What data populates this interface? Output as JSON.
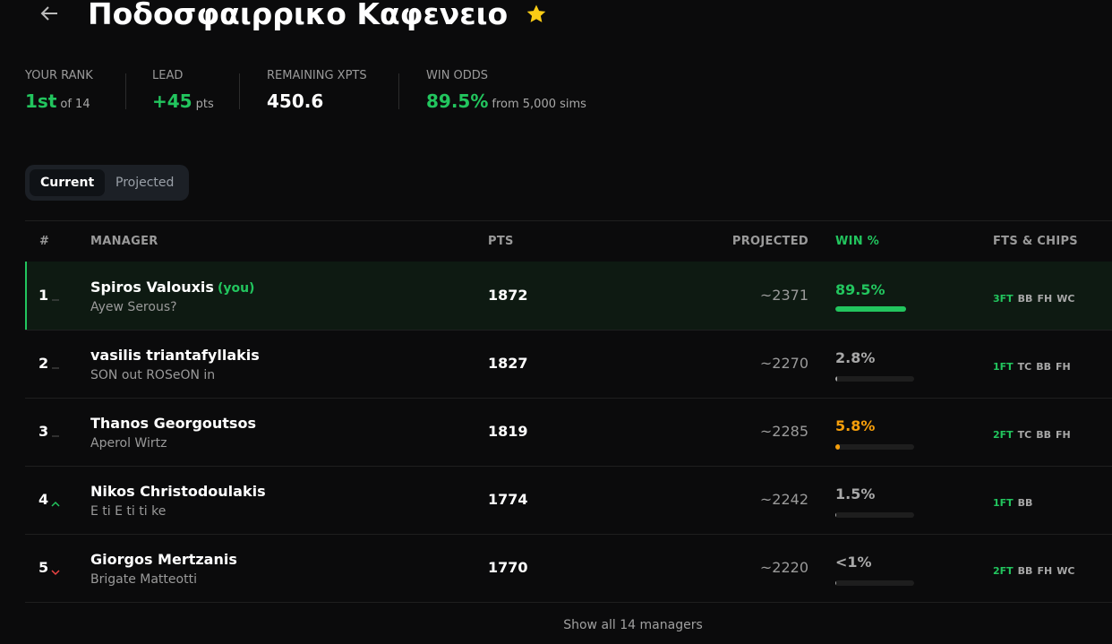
{
  "header": {
    "title": "Ποδοσφαιρρικο Καφενειο"
  },
  "stats": [
    {
      "label": "YOUR RANK",
      "value": "1st",
      "suffix": "of 14",
      "color": "#22c55e"
    },
    {
      "label": "LEAD",
      "value": "+45",
      "suffix": "pts",
      "color": "#22c55e"
    },
    {
      "label": "REMAINING XPTS",
      "value": "450.6",
      "color": "#ffffff"
    },
    {
      "label": "WIN ODDS",
      "value": "89.5%",
      "suffix": "from 5,000 sims",
      "color": "#22c55e"
    }
  ],
  "tabs": [
    "Current",
    "Projected"
  ],
  "table": {
    "columns": [
      "#",
      "MANAGER",
      "PTS",
      "PROJECTED",
      "WIN %",
      "FTS & CHIPS"
    ],
    "rows": [
      {
        "rank": "1",
        "trend": "same",
        "manager": "Spiros Valouxis",
        "you": "(you)",
        "team": "Ayew Serous?",
        "pts": "1872",
        "projected": "~2371",
        "win_label": "89.5%",
        "win_pct": 89.5,
        "win_color": "#22c55e",
        "fts": "3FT",
        "chips": [
          "BB",
          "FH",
          "WC"
        ]
      },
      {
        "rank": "2",
        "trend": "same",
        "manager": "vasilis triantafyllakis",
        "team": "SON out ROSeON in",
        "pts": "1827",
        "projected": "~2270",
        "win_label": "2.8%",
        "win_pct": 2.8,
        "win_color": "#a8a8a8",
        "fts": "1FT",
        "chips": [
          "TC",
          "BB",
          "FH"
        ]
      },
      {
        "rank": "3",
        "trend": "same",
        "manager": "Thanos Georgoutsos",
        "team": "Aperol Wirtz",
        "pts": "1819",
        "projected": "~2285",
        "win_label": "5.8%",
        "win_pct": 5.8,
        "win_color": "#f59e0b",
        "fts": "2FT",
        "chips": [
          "TC",
          "BB",
          "FH"
        ]
      },
      {
        "rank": "4",
        "trend": "up",
        "manager": "Nikos Christodoulakis",
        "team": "E ti E ti ti ke",
        "pts": "1774",
        "projected": "~2242",
        "win_label": "1.5%",
        "win_pct": 1.5,
        "win_color": "#a8a8a8",
        "fts": "1FT",
        "chips": [
          "BB"
        ]
      },
      {
        "rank": "5",
        "trend": "down",
        "manager": "Giorgos Mertzanis",
        "team": "Brigate Matteotti",
        "pts": "1770",
        "projected": "~2220",
        "win_label": "<1%",
        "win_pct": 0.5,
        "win_color": "#a8a8a8",
        "fts": "2FT",
        "chips": [
          "BB",
          "FH",
          "WC"
        ]
      }
    ]
  },
  "footer": "Show all 14 managers"
}
